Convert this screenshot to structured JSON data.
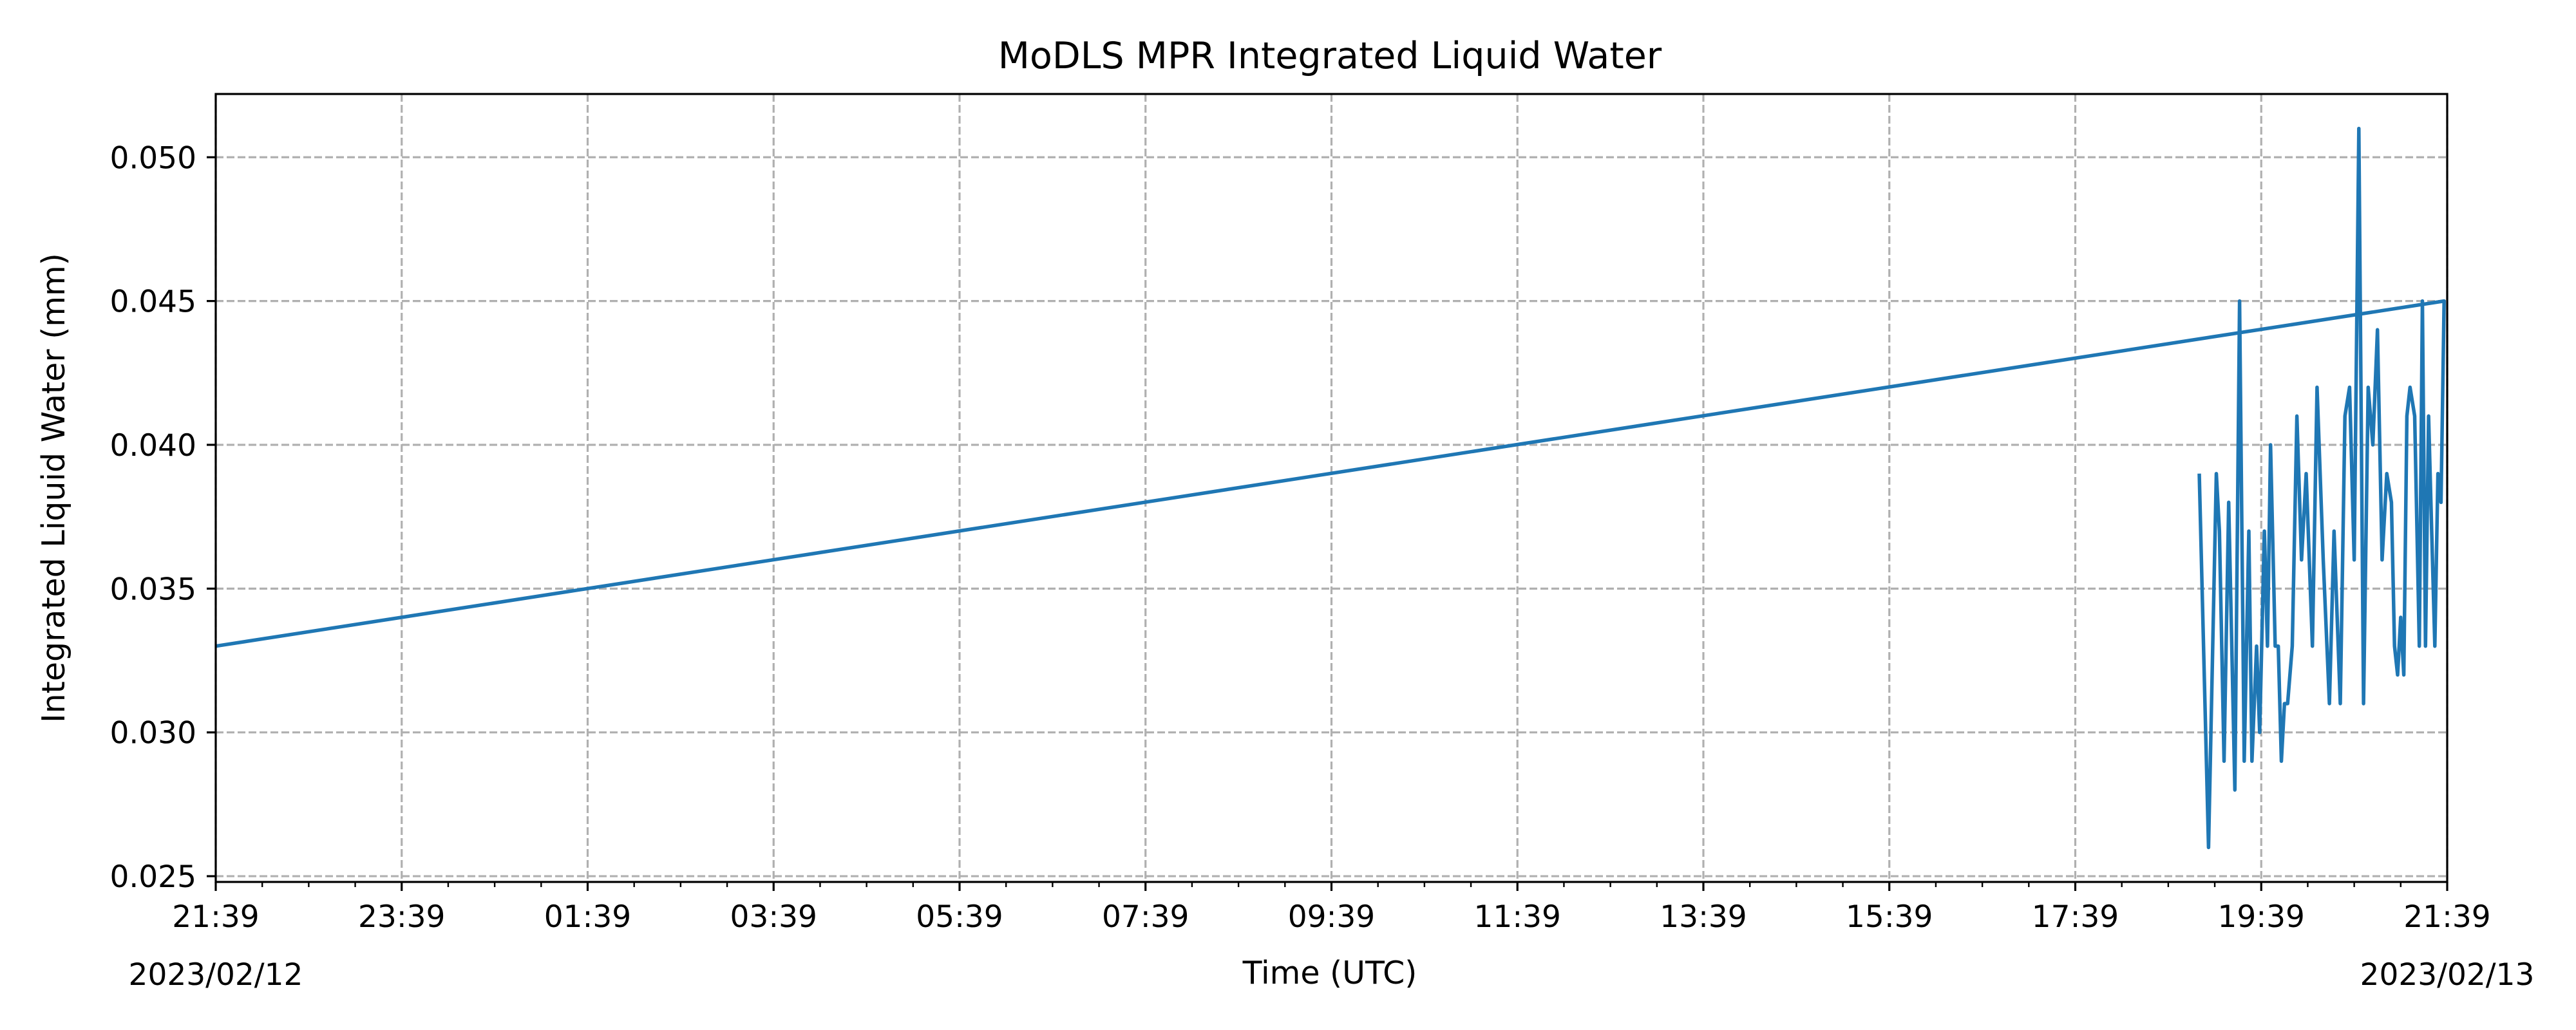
{
  "chart_data": {
    "type": "line",
    "title": "MoDLS MPR Integrated Liquid Water",
    "xlabel": "Time (UTC)",
    "ylabel": "Integrated Liquid Water (mm)",
    "x_tick_labels": [
      "21:39",
      "23:39",
      "01:39",
      "03:39",
      "05:39",
      "07:39",
      "09:39",
      "11:39",
      "13:39",
      "15:39",
      "17:39",
      "19:39",
      "21:39"
    ],
    "x_date_start": "2023/02/12",
    "x_date_end": "2023/02/13",
    "xlim": [
      "2023-02-12T21:39",
      "2023-02-13T21:39"
    ],
    "y_ticks": [
      0.025,
      0.03,
      0.035,
      0.04,
      0.045,
      0.05
    ],
    "y_tick_labels": [
      "0.025",
      "0.030",
      "0.035",
      "0.040",
      "0.045",
      "0.050"
    ],
    "ylim": [
      0.0248,
      0.0522
    ],
    "grid": true,
    "series": [
      {
        "color": "#1f77b4",
        "x": [
          "18:59",
          "19:05",
          "19:10",
          "19:12",
          "19:15",
          "19:18",
          "19:22",
          "19:25",
          "19:28",
          "19:31",
          "19:33",
          "19:36",
          "19:38",
          "19:41",
          "19:43",
          "19:45",
          "19:48",
          "19:50",
          "19:52",
          "19:54",
          "19:56",
          "19:59",
          "20:02",
          "20:05",
          "20:08",
          "20:12",
          "20:15",
          "20:19",
          "20:23",
          "20:26",
          "20:30",
          "20:33",
          "20:36",
          "20:39",
          "20:42",
          "20:45",
          "20:48",
          "20:51",
          "20:54",
          "20:57",
          "21:00",
          "21:03",
          "21:05",
          "21:07",
          "21:09",
          "21:11",
          "21:13",
          "21:15",
          "21:18",
          "21:21",
          "21:23",
          "21:25",
          "21:27",
          "21:29",
          "21:31",
          "21:33",
          "21:35",
          "21:37",
          "21:39"
        ],
        "y": [
          0.039,
          0.026,
          0.039,
          0.037,
          0.029,
          0.038,
          0.028,
          0.045,
          0.029,
          0.037,
          0.029,
          0.033,
          0.03,
          0.037,
          0.033,
          0.04,
          0.033,
          0.033,
          0.029,
          0.031,
          0.031,
          0.033,
          0.041,
          0.036,
          0.039,
          0.033,
          0.042,
          0.036,
          0.031,
          0.037,
          0.031,
          0.041,
          0.042,
          0.036,
          0.051,
          0.031,
          0.042,
          0.04,
          0.044,
          0.036,
          0.039,
          0.038,
          0.033,
          0.032,
          0.034,
          0.032,
          0.041,
          0.042,
          0.041,
          0.033,
          0.045,
          0.033,
          0.041,
          0.037,
          0.033,
          0.039,
          0.038,
          0.045,
          0.033
        ]
      }
    ]
  }
}
